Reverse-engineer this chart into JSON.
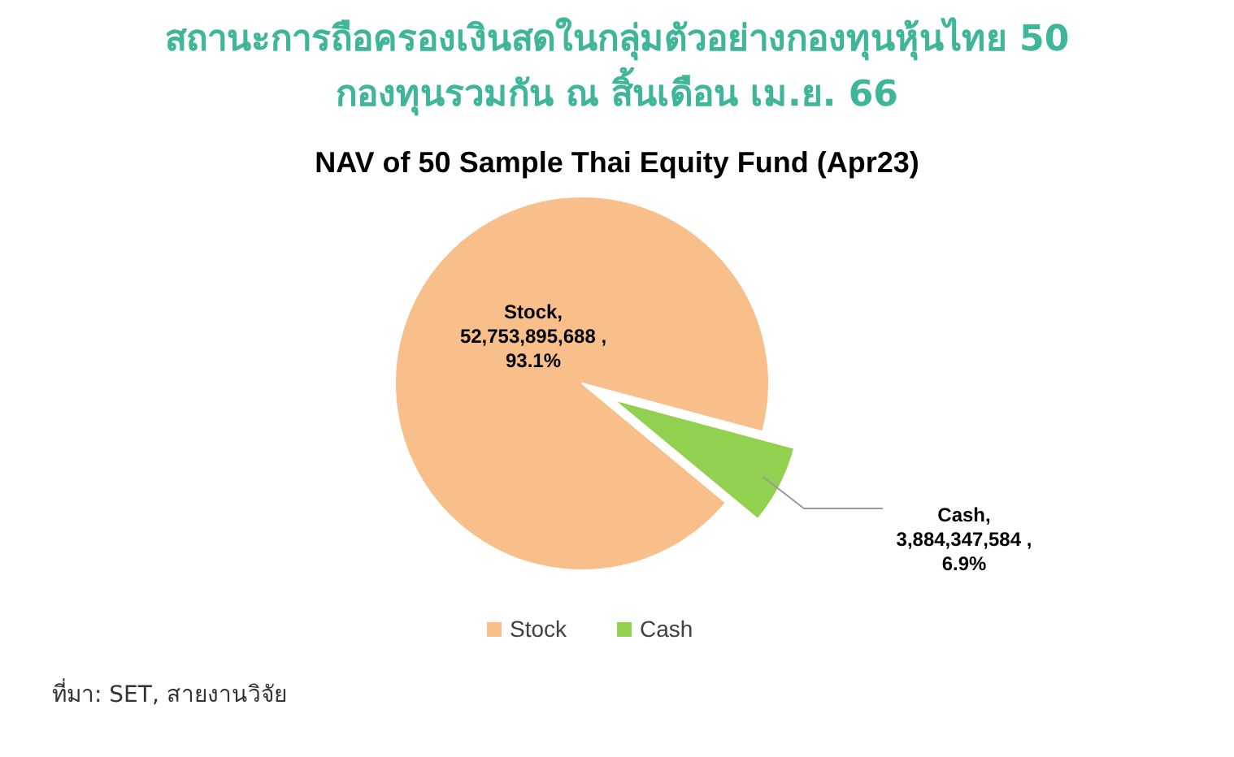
{
  "chart_data": {
    "type": "pie",
    "title": "สถานะการถือครองเงินสดในกลุ่มตัวอย่างกองทุนหุ้นไทย 50 กองทุนรวมกัน ณ สิ้นเดือน เม.ย. 66",
    "subtitle": "NAV of 50 Sample Thai Equity Fund (Apr23)",
    "categories": [
      "Stock",
      "Cash"
    ],
    "values": [
      52753895688,
      3884347584
    ],
    "colors": [
      "#f8bf8a",
      "#92d050"
    ],
    "value_labels": [
      ",\n52,753,895,688 ,\n93.1%",
      ",\n3,884,347,584 ,\n6.9%"
    ],
    "legend": "bottom",
    "annotations": [
      "ที่มา: SET, สายงานวิจัย"
    ]
  }
}
